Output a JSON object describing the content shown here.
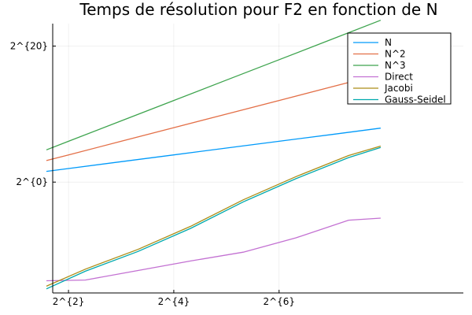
{
  "chart_data": {
    "type": "line",
    "title": "Temps de résolution pour F2 en fonction de N",
    "xlabel": "",
    "ylabel": "",
    "x_scale": "log2",
    "y_scale": "log2",
    "xlim": [
      1.7,
      9.5
    ],
    "ylim": [
      -16.3,
      23.3
    ],
    "x_ticks": [
      {
        "value": 2,
        "label": "2^{2}"
      },
      {
        "value": 4,
        "label": "2^{4}"
      },
      {
        "value": 6,
        "label": "2^{6}"
      }
    ],
    "y_ticks": [
      {
        "value": 0,
        "label": "2^{0}"
      },
      {
        "value": 20,
        "label": "2^{20}"
      }
    ],
    "grid": true,
    "legend_position": "top-right",
    "series": [
      {
        "name": "N",
        "color": "#009AFA",
        "x": [
          1.58,
          2,
          3,
          4,
          5,
          6,
          7,
          7.93
        ],
        "y": [
          1.58,
          2,
          3,
          4,
          5,
          6,
          7,
          7.93
        ]
      },
      {
        "name": "N^2",
        "color": "#E36F47",
        "x": [
          1.58,
          2,
          3,
          4,
          5,
          6,
          7,
          7.93
        ],
        "y": [
          3.16,
          4,
          6,
          8,
          10,
          12,
          14,
          15.86
        ]
      },
      {
        "name": "N^3",
        "color": "#3EA44E",
        "x": [
          1.58,
          2,
          3,
          4,
          5,
          6,
          7,
          7.93
        ],
        "y": [
          4.74,
          6,
          9,
          12,
          15,
          18,
          21,
          23.8
        ]
      },
      {
        "name": "Direct",
        "color": "#C371D2",
        "x": [
          1.58,
          2.32,
          3.32,
          4.32,
          5.32,
          6.32,
          7.32,
          7.93
        ],
        "y": [
          -14.5,
          -14.4,
          -13,
          -11.6,
          -10.3,
          -8.2,
          -5.6,
          -5.3
        ]
      },
      {
        "name": "Jacobi",
        "color": "#AC8D18",
        "x": [
          1.58,
          2.32,
          3.32,
          4.32,
          5.32,
          6.32,
          7.32,
          7.93
        ],
        "y": [
          -15.3,
          -12.8,
          -9.9,
          -6.5,
          -2.6,
          0.8,
          3.9,
          5.3
        ]
      },
      {
        "name": "Gauss-Seidel",
        "color": "#00A9AD",
        "x": [
          1.58,
          2.32,
          3.32,
          4.32,
          5.32,
          6.32,
          7.32,
          7.93
        ],
        "y": [
          -15.7,
          -13.1,
          -10.2,
          -6.8,
          -2.9,
          0.5,
          3.6,
          5.1
        ]
      }
    ]
  }
}
